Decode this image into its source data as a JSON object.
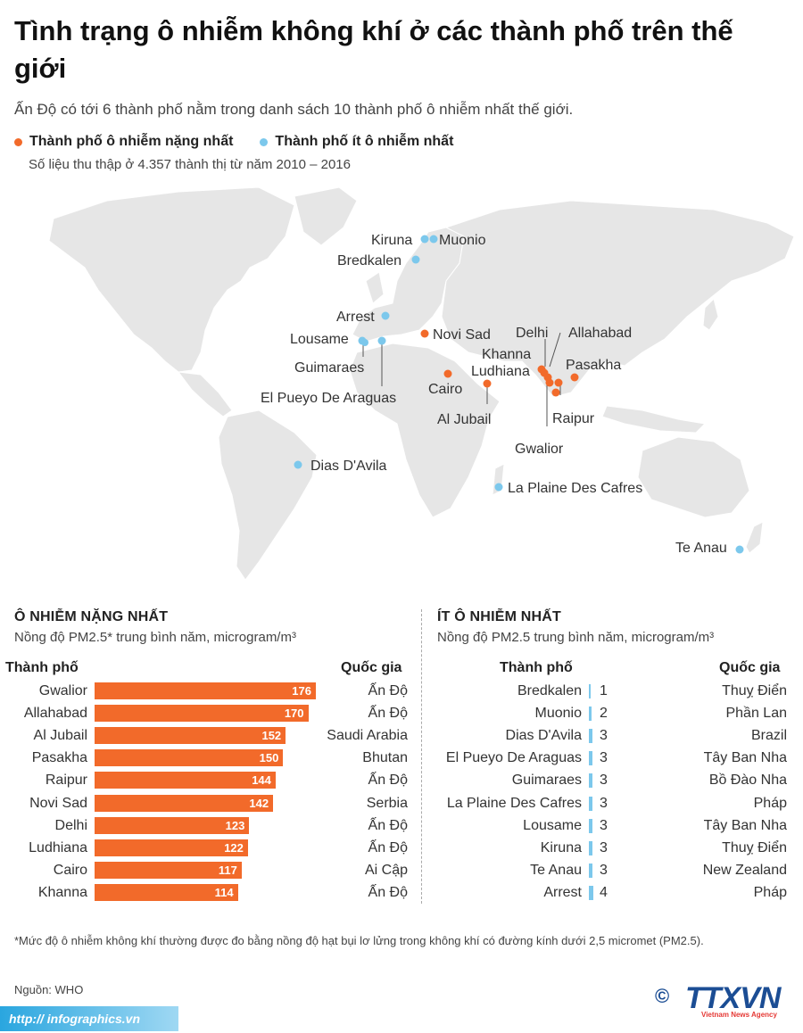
{
  "header": {
    "title": "Tình trạng ô nhiễm không khí ở các thành phố trên thế giới",
    "subtitle": "Ấn Độ có tới 6 thành phố nằm trong danh sách 10 thành phố ô nhiễm nhất thế giới.",
    "legend_polluted": "Thành phố ô nhiễm nặng nhất",
    "legend_clean": "Thành phố ít ô nhiễm nhất",
    "data_note": "Số liệu thu thập ở 4.357 thành thị từ năm 2010 – 2016"
  },
  "colors": {
    "polluted": "#f26a2a",
    "clean": "#7cc8ec",
    "land": "#e6e6e6",
    "brand": "#1b4d94"
  },
  "map_labels": {
    "kiruna": "Kiruna",
    "muonio": "Muonio",
    "bredkalen": "Bredkalen",
    "arrest": "Arrest",
    "lousame": "Lousame",
    "guimaraes": "Guimaraes",
    "el_pueyo": "El Pueyo De Araguas",
    "novi_sad": "Novi Sad",
    "cairo": "Cairo",
    "al_jubail": "Al Jubail",
    "delhi": "Delhi",
    "khanna": "Khanna",
    "ludhiana": "Ludhiana",
    "allahabad": "Allahabad",
    "pasakha": "Pasakha",
    "raipur": "Raipur",
    "gwalior": "Gwalior",
    "dias": "Dias D'Avila",
    "la_plaine": "La Plaine Des Cafres",
    "te_anau": "Te Anau"
  },
  "most_polluted": {
    "title": "Ô NHIỄM NẶNG NHẤT",
    "unit": "Nồng độ PM2.5* trung bình năm, microgram/m³",
    "col_city": "Thành phố",
    "col_country": "Quốc gia"
  },
  "least_polluted": {
    "title": "ÍT Ô NHIỄM NHẤT",
    "unit": "Nồng độ PM2.5 trung bình năm, microgram/m³",
    "col_city": "Thành phố",
    "col_country": "Quốc gia"
  },
  "chart_data": [
    {
      "type": "bar",
      "title": "Ô NHIỄM NẶNG NHẤT",
      "categories": [
        "Gwalior",
        "Allahabad",
        "Al Jubail",
        "Pasakha",
        "Raipur",
        "Novi Sad",
        "Delhi",
        "Ludhiana",
        "Cairo",
        "Khanna"
      ],
      "countries": [
        "Ấn Độ",
        "Ấn Độ",
        "Saudi Arabia",
        "Bhutan",
        "Ấn Độ",
        "Serbia",
        "Ấn Độ",
        "Ấn Độ",
        "Ai Cập",
        "Ấn Độ"
      ],
      "values": [
        176,
        170,
        152,
        150,
        144,
        142,
        123,
        122,
        117,
        114
      ],
      "xlim": [
        0,
        176
      ]
    },
    {
      "type": "bar",
      "title": "ÍT Ô NHIỄM NHẤT",
      "categories": [
        "Bredkalen",
        "Muonio",
        "Dias D'Avila",
        "El Pueyo De Araguas",
        "Guimaraes",
        "La Plaine Des Cafres",
        "Lousame",
        "Kiruna",
        "Te Anau",
        "Arrest"
      ],
      "countries": [
        "Thuỵ Điển",
        "Phần Lan",
        "Brazil",
        "Tây Ban Nha",
        "Bồ Đào Nha",
        "Pháp",
        "Tây Ban Nha",
        "Thuỵ Điển",
        "New Zealand",
        "Pháp"
      ],
      "values": [
        1,
        2,
        3,
        3,
        3,
        3,
        3,
        3,
        3,
        4
      ],
      "xlim": [
        0,
        4
      ]
    }
  ],
  "footer": {
    "footnote": "*Mức độ ô nhiễm không khí thường được đo bằng nồng độ hạt bụi lơ lửng trong không khí có đường kính dưới 2,5 micromet (PM2.5).",
    "source": "Nguồn: WHO",
    "url": "http:// infographics.vn",
    "copyright": "©",
    "logo": "TTXVN",
    "logo_sub": "Vietnam News Agency"
  }
}
